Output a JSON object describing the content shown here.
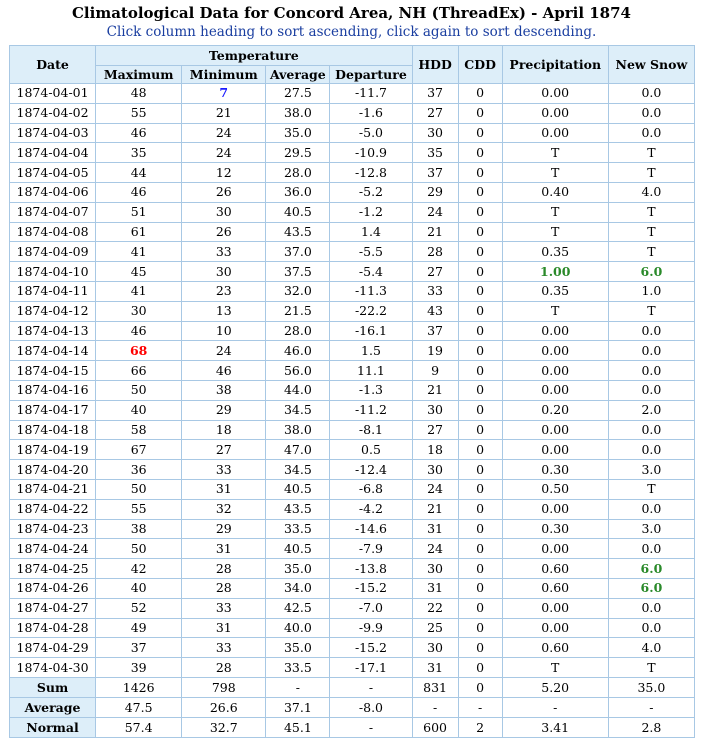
{
  "title": "Climatological Data for Concord Area, NH (ThreadEx) - April 1874",
  "subtitle": "Click column heading to sort ascending, click again to sort descending.",
  "headers": {
    "date": "Date",
    "temperature": "Temperature",
    "maximum": "Maximum",
    "minimum": "Minimum",
    "average": "Average",
    "departure": "Departure",
    "hdd": "HDD",
    "cdd": "CDD",
    "precipitation": "Precipitation",
    "new_snow": "New Snow"
  },
  "colors": {
    "record_high": "#ff0000",
    "record_low": "#1a1aff",
    "highlight_precip": "#2a8a2a"
  },
  "rows": [
    [
      "1874-04-01",
      "48",
      "7",
      "27.5",
      "-11.7",
      "37",
      "0",
      "0.00",
      "0.0"
    ],
    [
      "1874-04-02",
      "55",
      "21",
      "38.0",
      "-1.6",
      "27",
      "0",
      "0.00",
      "0.0"
    ],
    [
      "1874-04-03",
      "46",
      "24",
      "35.0",
      "-5.0",
      "30",
      "0",
      "0.00",
      "0.0"
    ],
    [
      "1874-04-04",
      "35",
      "24",
      "29.5",
      "-10.9",
      "35",
      "0",
      "T",
      "T"
    ],
    [
      "1874-04-05",
      "44",
      "12",
      "28.0",
      "-12.8",
      "37",
      "0",
      "T",
      "T"
    ],
    [
      "1874-04-06",
      "46",
      "26",
      "36.0",
      "-5.2",
      "29",
      "0",
      "0.40",
      "4.0"
    ],
    [
      "1874-04-07",
      "51",
      "30",
      "40.5",
      "-1.2",
      "24",
      "0",
      "T",
      "T"
    ],
    [
      "1874-04-08",
      "61",
      "26",
      "43.5",
      "1.4",
      "21",
      "0",
      "T",
      "T"
    ],
    [
      "1874-04-09",
      "41",
      "33",
      "37.0",
      "-5.5",
      "28",
      "0",
      "0.35",
      "T"
    ],
    [
      "1874-04-10",
      "45",
      "30",
      "37.5",
      "-5.4",
      "27",
      "0",
      "1.00",
      "6.0"
    ],
    [
      "1874-04-11",
      "41",
      "23",
      "32.0",
      "-11.3",
      "33",
      "0",
      "0.35",
      "1.0"
    ],
    [
      "1874-04-12",
      "30",
      "13",
      "21.5",
      "-22.2",
      "43",
      "0",
      "T",
      "T"
    ],
    [
      "1874-04-13",
      "46",
      "10",
      "28.0",
      "-16.1",
      "37",
      "0",
      "0.00",
      "0.0"
    ],
    [
      "1874-04-14",
      "68",
      "24",
      "46.0",
      "1.5",
      "19",
      "0",
      "0.00",
      "0.0"
    ],
    [
      "1874-04-15",
      "66",
      "46",
      "56.0",
      "11.1",
      "9",
      "0",
      "0.00",
      "0.0"
    ],
    [
      "1874-04-16",
      "50",
      "38",
      "44.0",
      "-1.3",
      "21",
      "0",
      "0.00",
      "0.0"
    ],
    [
      "1874-04-17",
      "40",
      "29",
      "34.5",
      "-11.2",
      "30",
      "0",
      "0.20",
      "2.0"
    ],
    [
      "1874-04-18",
      "58",
      "18",
      "38.0",
      "-8.1",
      "27",
      "0",
      "0.00",
      "0.0"
    ],
    [
      "1874-04-19",
      "67",
      "27",
      "47.0",
      "0.5",
      "18",
      "0",
      "0.00",
      "0.0"
    ],
    [
      "1874-04-20",
      "36",
      "33",
      "34.5",
      "-12.4",
      "30",
      "0",
      "0.30",
      "3.0"
    ],
    [
      "1874-04-21",
      "50",
      "31",
      "40.5",
      "-6.8",
      "24",
      "0",
      "0.50",
      "T"
    ],
    [
      "1874-04-22",
      "55",
      "32",
      "43.5",
      "-4.2",
      "21",
      "0",
      "0.00",
      "0.0"
    ],
    [
      "1874-04-23",
      "38",
      "29",
      "33.5",
      "-14.6",
      "31",
      "0",
      "0.30",
      "3.0"
    ],
    [
      "1874-04-24",
      "50",
      "31",
      "40.5",
      "-7.9",
      "24",
      "0",
      "0.00",
      "0.0"
    ],
    [
      "1874-04-25",
      "42",
      "28",
      "35.0",
      "-13.8",
      "30",
      "0",
      "0.60",
      "6.0"
    ],
    [
      "1874-04-26",
      "40",
      "28",
      "34.0",
      "-15.2",
      "31",
      "0",
      "0.60",
      "6.0"
    ],
    [
      "1874-04-27",
      "52",
      "33",
      "42.5",
      "-7.0",
      "22",
      "0",
      "0.00",
      "0.0"
    ],
    [
      "1874-04-28",
      "49",
      "31",
      "40.0",
      "-9.9",
      "25",
      "0",
      "0.00",
      "0.0"
    ],
    [
      "1874-04-29",
      "37",
      "33",
      "35.0",
      "-15.2",
      "30",
      "0",
      "0.60",
      "4.0"
    ],
    [
      "1874-04-30",
      "39",
      "28",
      "33.5",
      "-17.1",
      "31",
      "0",
      "T",
      "T"
    ]
  ],
  "highlights": [
    {
      "row": 0,
      "col": 2,
      "style": "blue"
    },
    {
      "row": 13,
      "col": 1,
      "style": "red"
    },
    {
      "row": 9,
      "col": 7,
      "style": "green"
    },
    {
      "row": 9,
      "col": 8,
      "style": "green"
    },
    {
      "row": 24,
      "col": 8,
      "style": "green"
    },
    {
      "row": 25,
      "col": 8,
      "style": "green"
    }
  ],
  "summary": [
    [
      "Sum",
      "1426",
      "798",
      "-",
      "-",
      "831",
      "0",
      "5.20",
      "35.0"
    ],
    [
      "Average",
      "47.5",
      "26.6",
      "37.1",
      "-8.0",
      "-",
      "-",
      "-",
      "-"
    ],
    [
      "Normal",
      "57.4",
      "32.7",
      "45.1",
      "-",
      "600",
      "2",
      "3.41",
      "2.8"
    ]
  ]
}
